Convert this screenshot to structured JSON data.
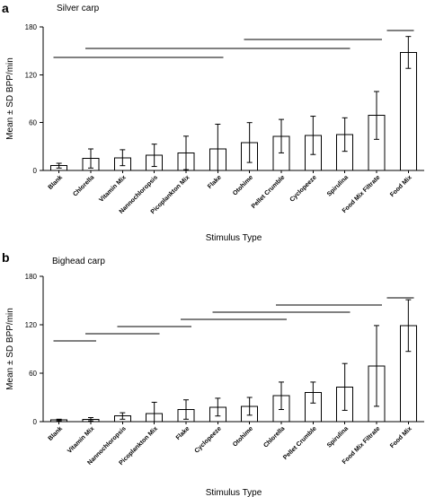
{
  "chart_data": [
    {
      "type": "bar",
      "panel": "a",
      "title": "Silver carp",
      "xlabel": "Stimulus Type",
      "ylabel": "Mean ± SD BPP/min",
      "ylim": [
        0,
        180
      ],
      "yticks": [
        0,
        60,
        120,
        180
      ],
      "categories": [
        "Blank",
        "Chlorella",
        "Vitamin Mix",
        "Nannochloropsis",
        "Picoplankton Mix",
        "Flake",
        "Otohime",
        "Pellet Crumble",
        "Cyclopeeze",
        "Spirulina",
        "Food Mix Filtrate",
        "Food Mix"
      ],
      "values": [
        6,
        15,
        16,
        19,
        22,
        27,
        35,
        43,
        44,
        45,
        69,
        148
      ],
      "errors": [
        3,
        12,
        10,
        14,
        21,
        31,
        25,
        21,
        24,
        21,
        30,
        20
      ],
      "significance_bars": [
        {
          "from": 0,
          "to": 5,
          "level": 1
        },
        {
          "from": 1,
          "to": 9,
          "level": 2
        },
        {
          "from": 6,
          "to": 10,
          "level": 3
        },
        {
          "from": 10.5,
          "to": 11,
          "level": 4
        }
      ]
    },
    {
      "type": "bar",
      "panel": "b",
      "title": "Bighead carp",
      "xlabel": "Stimulus Type",
      "ylabel": "Mean ± SD BPP/min",
      "ylim": [
        0,
        180
      ],
      "yticks": [
        0,
        60,
        120,
        180
      ],
      "categories": [
        "Blank",
        "Vitamin Mix",
        "Nannochloropsis",
        "Picoplankton Mix",
        "Flake",
        "Cyclopeeze",
        "Otohime",
        "Chlorella",
        "Pellet Crumble",
        "Spirulina",
        "Food Mix Filtrate",
        "Food Mix"
      ],
      "values": [
        2,
        3,
        7,
        10,
        15,
        18,
        19,
        32,
        36,
        43,
        69,
        119
      ],
      "errors": [
        1,
        2,
        4,
        14,
        12,
        11,
        11,
        17,
        13,
        29,
        50,
        32
      ],
      "significance_bars": [
        {
          "from": 0,
          "to": 1,
          "level": 1
        },
        {
          "from": 1,
          "to": 3,
          "level": 2
        },
        {
          "from": 2,
          "to": 4,
          "level": 3
        },
        {
          "from": 4,
          "to": 7,
          "level": 4
        },
        {
          "from": 5,
          "to": 9,
          "level": 5
        },
        {
          "from": 7,
          "to": 10,
          "level": 6
        },
        {
          "from": 10.5,
          "to": 11,
          "level": 7
        }
      ]
    }
  ]
}
